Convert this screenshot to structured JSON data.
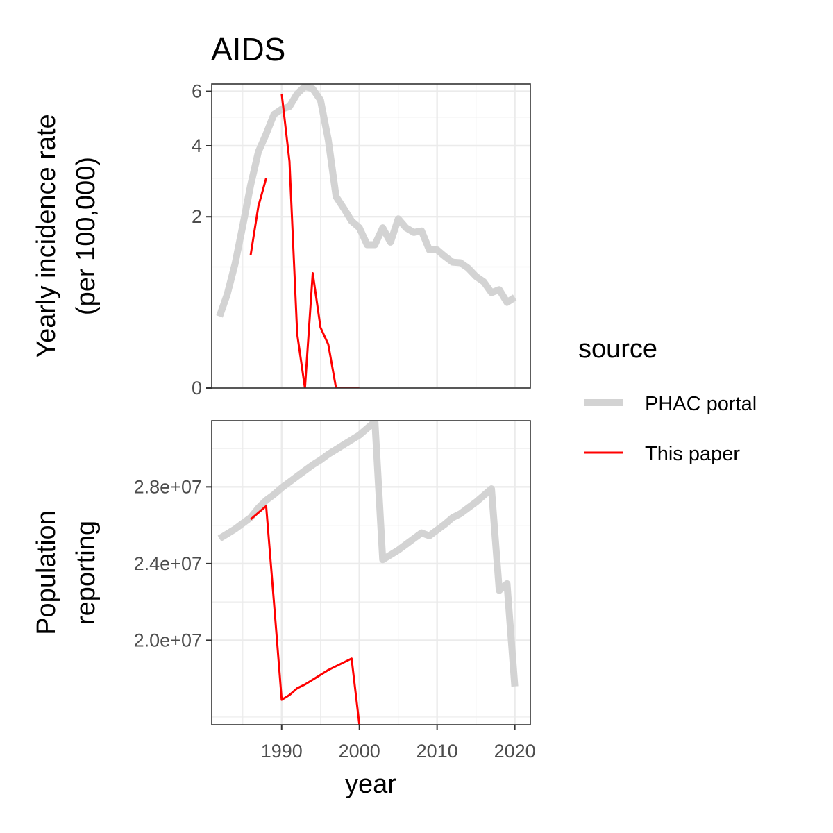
{
  "title": "AIDS",
  "colors": {
    "phac": "#d3d3d3",
    "paper": "#ff0000",
    "grid": "#ebebeb",
    "panel_border": "#333333"
  },
  "legend": {
    "title": "source",
    "items": [
      {
        "label": "PHAC portal",
        "color": "#d3d3d3"
      },
      {
        "label": "This paper",
        "color": "#ff0000"
      }
    ]
  },
  "chart_data": [
    {
      "type": "line",
      "panel": "top",
      "ylabel_line1": "Yearly incidence rate",
      "ylabel_line2": "(per 100,000)",
      "y_scale": "sqrt",
      "ylim": [
        0,
        6.3
      ],
      "y_ticks": [
        0,
        2,
        4,
        6
      ],
      "y_tick_labels": [
        "0",
        "2",
        "4",
        "6"
      ],
      "y_minor": [
        1,
        3,
        5
      ],
      "series": [
        {
          "name": "PHAC portal",
          "points": [
            [
              1982,
              0.35
            ],
            [
              1983,
              0.6
            ],
            [
              1984,
              1.05
            ],
            [
              1985,
              1.8
            ],
            [
              1986,
              2.8
            ],
            [
              1987,
              3.8
            ],
            [
              1988,
              4.4
            ],
            [
              1989,
              5.1
            ],
            [
              1990,
              5.3
            ],
            [
              1991,
              5.4
            ],
            [
              1992,
              5.9
            ],
            [
              1993,
              6.2
            ],
            [
              1994,
              6.1
            ],
            [
              1995,
              5.65
            ],
            [
              1996,
              4.2
            ],
            [
              1997,
              2.5
            ],
            [
              1998,
              2.2
            ],
            [
              1999,
              1.9
            ],
            [
              2000,
              1.75
            ],
            [
              2001,
              1.4
            ],
            [
              2002,
              1.4
            ],
            [
              2003,
              1.75
            ],
            [
              2004,
              1.45
            ],
            [
              2005,
              1.95
            ],
            [
              2006,
              1.75
            ],
            [
              2007,
              1.65
            ],
            [
              2008,
              1.68
            ],
            [
              2009,
              1.3
            ],
            [
              2010,
              1.3
            ],
            [
              2011,
              1.18
            ],
            [
              2012,
              1.08
            ],
            [
              2013,
              1.07
            ],
            [
              2014,
              0.98
            ],
            [
              2015,
              0.85
            ],
            [
              2016,
              0.77
            ],
            [
              2017,
              0.62
            ],
            [
              2018,
              0.66
            ],
            [
              2019,
              0.5
            ],
            [
              2020,
              0.56
            ]
          ]
        },
        {
          "name": "This paper",
          "segments": [
            [
              [
                1986,
                1.2
              ],
              [
                1987,
                2.25
              ],
              [
                1988,
                3.0
              ]
            ],
            [
              [
                1990,
                5.9
              ],
              [
                1991,
                3.5
              ],
              [
                1992,
                0.2
              ],
              [
                1993,
                0.0
              ],
              [
                1994,
                0.9
              ],
              [
                1995,
                0.25
              ],
              [
                1996,
                0.13
              ],
              [
                1997,
                0.0
              ],
              [
                2000,
                0.0
              ]
            ]
          ]
        }
      ]
    },
    {
      "type": "line",
      "panel": "bottom",
      "ylabel_line1": "Population",
      "ylabel_line2": "reporting",
      "ylim": [
        15600000,
        31450000
      ],
      "y_ticks": [
        20000000,
        24000000,
        28000000
      ],
      "y_tick_labels": [
        "2.0e+07",
        "2.4e+07",
        "2.8e+07"
      ],
      "y_minor": [
        16000000,
        22000000,
        26000000,
        30000000
      ],
      "xlabel": "year",
      "x_ticks": [
        1990,
        2000,
        2010,
        2020
      ],
      "x_tick_labels": [
        "1990",
        "2000",
        "2010",
        "2020"
      ],
      "xlim": [
        1981,
        2022
      ],
      "series": [
        {
          "name": "PHAC portal",
          "points": [
            [
              1982,
              25300000
            ],
            [
              1983,
              25550000
            ],
            [
              1984,
              25800000
            ],
            [
              1985,
              26100000
            ],
            [
              1986,
              26400000
            ],
            [
              1987,
              26900000
            ],
            [
              1988,
              27300000
            ],
            [
              1989,
              27600000
            ],
            [
              1990,
              27950000
            ],
            [
              1991,
              28250000
            ],
            [
              1992,
              28550000
            ],
            [
              1993,
              28850000
            ],
            [
              1994,
              29150000
            ],
            [
              1995,
              29400000
            ],
            [
              1996,
              29700000
            ],
            [
              1997,
              29950000
            ],
            [
              1998,
              30200000
            ],
            [
              1999,
              30450000
            ],
            [
              2000,
              30700000
            ],
            [
              2001,
              31050000
            ],
            [
              2002,
              31400000
            ],
            [
              2003,
              24200000
            ],
            [
              2004,
              24450000
            ],
            [
              2005,
              24700000
            ],
            [
              2006,
              25000000
            ],
            [
              2007,
              25300000
            ],
            [
              2008,
              25600000
            ],
            [
              2009,
              25450000
            ],
            [
              2010,
              25750000
            ],
            [
              2011,
              26050000
            ],
            [
              2012,
              26400000
            ],
            [
              2013,
              26600000
            ],
            [
              2014,
              26900000
            ],
            [
              2015,
              27200000
            ],
            [
              2016,
              27550000
            ],
            [
              2017,
              27900000
            ],
            [
              2018,
              22600000
            ],
            [
              2019,
              22950000
            ],
            [
              2020,
              17600000
            ]
          ]
        },
        {
          "name": "This paper",
          "points": [
            [
              1986,
              26300000
            ],
            [
              1987,
              26650000
            ],
            [
              1988,
              27000000
            ],
            [
              1989,
              22000000
            ],
            [
              1990,
              16900000
            ],
            [
              1991,
              17150000
            ],
            [
              1992,
              17500000
            ],
            [
              1993,
              17700000
            ],
            [
              1994,
              17950000
            ],
            [
              1995,
              18200000
            ],
            [
              1996,
              18450000
            ],
            [
              1997,
              18650000
            ],
            [
              1998,
              18850000
            ],
            [
              1999,
              19050000
            ],
            [
              2000,
              15600000
            ]
          ]
        }
      ]
    }
  ]
}
